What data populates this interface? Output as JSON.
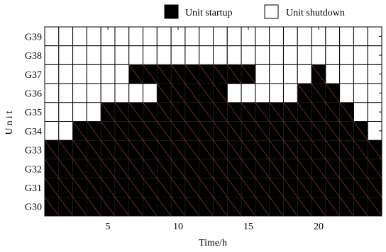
{
  "chart_data": {
    "type": "heatmap",
    "xlabel": "Time/h",
    "ylabel": "Unit",
    "x_ticks": [
      5,
      10,
      15,
      20
    ],
    "hours": 24,
    "legend": {
      "position": "top-right",
      "on_label": "Unit startup",
      "off_label": "Unit shutdown"
    },
    "colors": {
      "on": "#000000",
      "off": "#ffffff",
      "hatch": "#7a3a2a"
    },
    "units": [
      {
        "name": "G39",
        "status": [
          0,
          0,
          0,
          0,
          0,
          0,
          0,
          0,
          0,
          0,
          0,
          0,
          0,
          0,
          0,
          0,
          0,
          0,
          0,
          0,
          0,
          0,
          0,
          0
        ]
      },
      {
        "name": "G38",
        "status": [
          0,
          0,
          0,
          0,
          0,
          0,
          0,
          0,
          0,
          0,
          0,
          0,
          0,
          0,
          0,
          0,
          0,
          0,
          0,
          0,
          0,
          0,
          0,
          0
        ]
      },
      {
        "name": "G37",
        "status": [
          0,
          0,
          0,
          0,
          0,
          0,
          1,
          1,
          1,
          1,
          1,
          1,
          1,
          1,
          1,
          0,
          0,
          0,
          0,
          1,
          0,
          0,
          0,
          0
        ]
      },
      {
        "name": "G36",
        "status": [
          0,
          0,
          0,
          0,
          0,
          0,
          0,
          0,
          1,
          1,
          1,
          1,
          1,
          0,
          0,
          0,
          0,
          0,
          1,
          1,
          1,
          0,
          0,
          0
        ]
      },
      {
        "name": "G35",
        "status": [
          0,
          0,
          0,
          0,
          1,
          1,
          1,
          1,
          1,
          1,
          1,
          1,
          1,
          1,
          1,
          1,
          1,
          1,
          1,
          1,
          1,
          1,
          0,
          0
        ]
      },
      {
        "name": "G34",
        "status": [
          0,
          0,
          1,
          1,
          1,
          1,
          1,
          1,
          1,
          1,
          1,
          1,
          1,
          1,
          1,
          1,
          1,
          1,
          1,
          1,
          1,
          1,
          1,
          0
        ]
      },
      {
        "name": "G33",
        "status": [
          1,
          1,
          1,
          1,
          1,
          1,
          1,
          1,
          1,
          1,
          1,
          1,
          1,
          1,
          1,
          1,
          1,
          1,
          1,
          1,
          1,
          1,
          1,
          1
        ]
      },
      {
        "name": "G32",
        "status": [
          1,
          1,
          1,
          1,
          1,
          1,
          1,
          1,
          1,
          1,
          1,
          1,
          1,
          1,
          1,
          1,
          1,
          1,
          1,
          1,
          1,
          1,
          1,
          1
        ]
      },
      {
        "name": "G31",
        "status": [
          1,
          1,
          1,
          1,
          1,
          1,
          1,
          1,
          1,
          1,
          1,
          1,
          1,
          1,
          1,
          1,
          1,
          1,
          1,
          1,
          1,
          1,
          1,
          1
        ]
      },
      {
        "name": "G30",
        "status": [
          1,
          1,
          1,
          1,
          1,
          1,
          1,
          1,
          1,
          1,
          1,
          1,
          1,
          1,
          1,
          1,
          1,
          1,
          1,
          1,
          1,
          1,
          1,
          1
        ]
      }
    ]
  }
}
